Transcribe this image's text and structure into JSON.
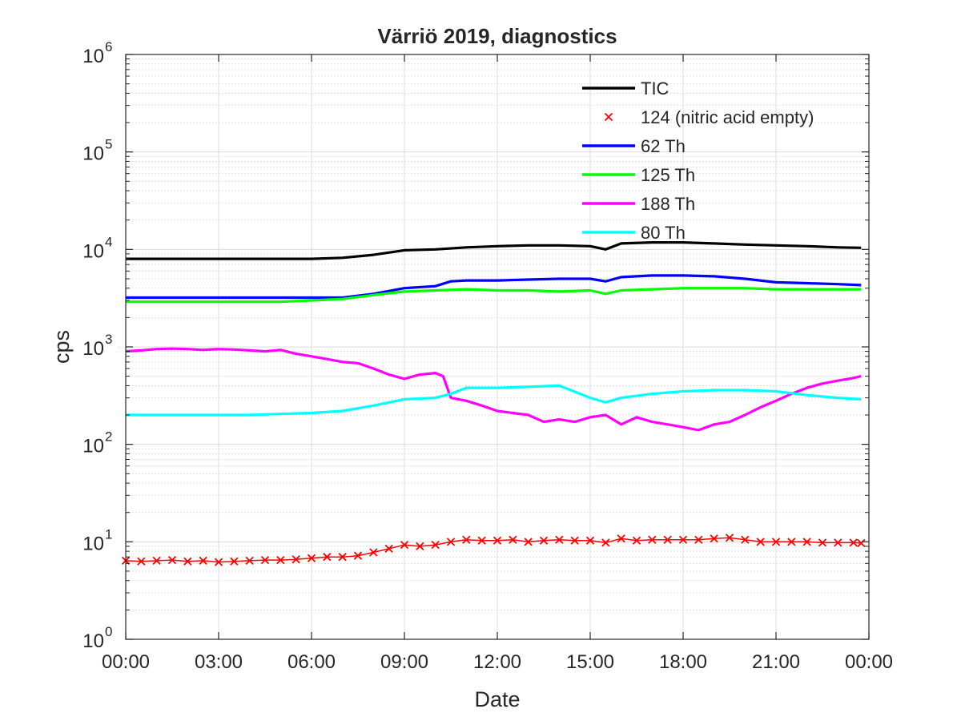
{
  "chart_data": {
    "type": "line",
    "title": "Värriö 2019, diagnostics",
    "xlabel": "Date",
    "ylabel": "cps",
    "y_scale": "log",
    "ylim": [
      1,
      1000000
    ],
    "xlim": [
      "00:00",
      "24:00"
    ],
    "x_unit": "hours",
    "x_ticks": [
      0,
      3,
      6,
      9,
      12,
      15,
      18,
      21,
      24
    ],
    "x_tick_labels": [
      "00:00",
      "03:00",
      "06:00",
      "09:00",
      "12:00",
      "15:00",
      "18:00",
      "21:00",
      "00:00"
    ],
    "y_ticks": [
      1,
      10,
      100,
      1000,
      10000,
      100000,
      1000000
    ],
    "y_tick_labels": [
      {
        "base": "10",
        "exp": "0"
      },
      {
        "base": "10",
        "exp": "1"
      },
      {
        "base": "10",
        "exp": "2"
      },
      {
        "base": "10",
        "exp": "3"
      },
      {
        "base": "10",
        "exp": "4"
      },
      {
        "base": "10",
        "exp": "5"
      },
      {
        "base": "10",
        "exp": "6"
      }
    ],
    "grid": true,
    "minor_grid": true,
    "legend_position": "top-right",
    "series": [
      {
        "name": "TIC",
        "color": "#000000",
        "marker": "none",
        "x": [
          0,
          1,
          2,
          3,
          4,
          5,
          6,
          7,
          8,
          9,
          10,
          11,
          12,
          13,
          14,
          15,
          15.5,
          16,
          17,
          18,
          19,
          20,
          21,
          22,
          23,
          23.75
        ],
        "y": [
          8000,
          8000,
          8000,
          8000,
          8000,
          8000,
          8000,
          8200,
          8800,
          9800,
          10000,
          10500,
          10800,
          11000,
          11000,
          10800,
          10000,
          11500,
          11800,
          11800,
          11500,
          11200,
          11000,
          10800,
          10500,
          10400
        ]
      },
      {
        "name": "124 (nitric acid empty)",
        "color": "#ff0000",
        "marker": "x",
        "x": [
          0,
          0.5,
          1,
          1.5,
          2,
          2.5,
          3,
          3.5,
          4,
          4.5,
          5,
          5.5,
          6,
          6.5,
          7,
          7.5,
          8,
          8.5,
          9,
          9.5,
          10,
          10.5,
          11,
          11.5,
          12,
          12.5,
          13,
          13.5,
          14,
          14.5,
          15,
          15.5,
          16,
          16.5,
          17,
          17.5,
          18,
          18.5,
          19,
          19.5,
          20,
          20.5,
          21,
          21.5,
          22,
          22.5,
          23,
          23.5,
          23.75
        ],
        "y": [
          6.4,
          6.3,
          6.4,
          6.5,
          6.3,
          6.4,
          6.2,
          6.3,
          6.4,
          6.5,
          6.5,
          6.6,
          6.8,
          7.0,
          7.0,
          7.2,
          7.8,
          8.5,
          9.3,
          9.0,
          9.3,
          10.0,
          10.5,
          10.3,
          10.3,
          10.5,
          10.0,
          10.3,
          10.5,
          10.3,
          10.3,
          9.8,
          10.8,
          10.3,
          10.5,
          10.5,
          10.5,
          10.5,
          10.8,
          11.0,
          10.5,
          10.0,
          10.0,
          10.0,
          10.0,
          9.8,
          9.8,
          9.8,
          9.7
        ]
      },
      {
        "name": "62 Th",
        "color": "#0000ff",
        "marker": "none",
        "x": [
          0,
          1,
          2,
          3,
          4,
          5,
          6,
          7,
          8,
          9,
          10,
          10.5,
          11,
          12,
          13,
          14,
          15,
          15.5,
          16,
          17,
          18,
          19,
          20,
          21,
          22,
          23,
          23.75
        ],
        "y": [
          3200,
          3200,
          3200,
          3200,
          3200,
          3200,
          3200,
          3200,
          3500,
          4000,
          4200,
          4700,
          4800,
          4800,
          4900,
          5000,
          5000,
          4700,
          5200,
          5400,
          5400,
          5300,
          5000,
          4600,
          4500,
          4400,
          4300
        ]
      },
      {
        "name": "125 Th",
        "color": "#00ff00",
        "marker": "none",
        "x": [
          0,
          1,
          2,
          3,
          4,
          5,
          6,
          7,
          8,
          9,
          10,
          11,
          12,
          13,
          14,
          15,
          15.5,
          16,
          17,
          18,
          19,
          20,
          21,
          22,
          23,
          23.75
        ],
        "y": [
          2900,
          2900,
          2900,
          2900,
          2900,
          2900,
          3000,
          3100,
          3400,
          3700,
          3800,
          3900,
          3800,
          3800,
          3700,
          3800,
          3500,
          3800,
          3900,
          4000,
          4000,
          4000,
          3900,
          3900,
          3900,
          3900
        ]
      },
      {
        "name": "188 Th",
        "color": "#ff00ff",
        "marker": "none",
        "x": [
          0,
          0.5,
          1,
          1.5,
          2,
          2.5,
          3,
          3.5,
          4,
          4.5,
          5,
          5.5,
          6,
          6.5,
          7,
          7.5,
          8,
          8.5,
          9,
          9.5,
          10,
          10.25,
          10.5,
          11,
          11.5,
          12,
          12.5,
          13,
          13.5,
          14,
          14.5,
          15,
          15.5,
          16,
          16.5,
          17,
          17.5,
          18,
          18.5,
          19,
          19.5,
          20,
          20.5,
          21,
          21.5,
          22,
          22.5,
          23,
          23.5,
          23.75
        ],
        "y": [
          900,
          920,
          950,
          960,
          950,
          930,
          950,
          940,
          920,
          900,
          930,
          850,
          800,
          750,
          700,
          680,
          600,
          520,
          470,
          520,
          540,
          500,
          300,
          280,
          250,
          220,
          210,
          200,
          170,
          180,
          170,
          190,
          200,
          160,
          190,
          170,
          160,
          150,
          140,
          160,
          170,
          200,
          240,
          280,
          330,
          380,
          420,
          450,
          480,
          500
        ]
      },
      {
        "name": "80 Th",
        "color": "#00ffff",
        "marker": "none",
        "x": [
          0,
          1,
          2,
          3,
          4,
          5,
          6,
          7,
          8,
          9,
          10,
          10.5,
          11,
          12,
          13,
          14,
          15,
          15.5,
          16,
          17,
          18,
          19,
          20,
          21,
          22,
          23,
          23.75
        ],
        "y": [
          200,
          200,
          200,
          200,
          200,
          205,
          210,
          220,
          250,
          290,
          300,
          330,
          380,
          380,
          390,
          400,
          300,
          270,
          300,
          330,
          350,
          360,
          360,
          350,
          320,
          300,
          290
        ]
      }
    ]
  }
}
